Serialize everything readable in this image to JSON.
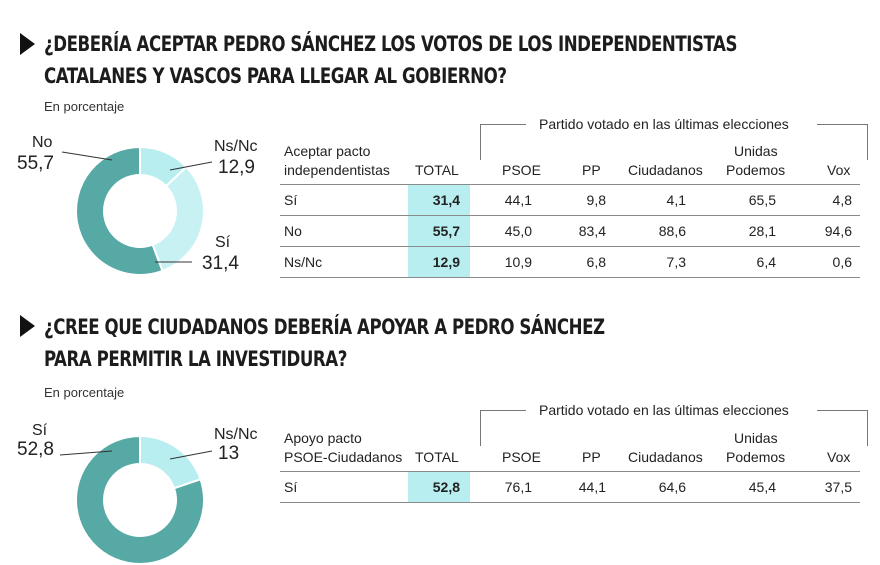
{
  "colors": {
    "no": "#56a9a5",
    "nsnc": "#b8eef0",
    "si": "#c7f1f3",
    "total_bg": "#b8eef0"
  },
  "section1": {
    "title_line1": "¿DEBERÍA ACEPTAR PEDRO SÁNCHEZ LOS VOTOS DE LOS INDEPENDENTISTAS",
    "title_line2": "CATALANES Y VASCOS PARA LLEGAR AL GOBIERNO?",
    "subtitle": "En porcentaje",
    "pie_labels": {
      "no_label": "No",
      "no_value": "55,7",
      "nsnc_label": "Ns/Nc",
      "nsnc_value": "12,9",
      "si_label": "Sí",
      "si_value": "31,4"
    },
    "table": {
      "group_header": "Partido votado en las últimas elecciones",
      "row_header_1": "Aceptar pacto",
      "row_header_2": "independentistas",
      "total_header": "TOTAL",
      "party_headers": [
        "PSOE",
        "PP",
        "Ciudadanos",
        "Unidas",
        "Podemos",
        "Vox"
      ],
      "rows": [
        {
          "label": "Sí",
          "total": "31,4",
          "psoe": "44,1",
          "pp": "9,8",
          "cs": "4,1",
          "up": "65,5",
          "vox": "4,8"
        },
        {
          "label": "No",
          "total": "55,7",
          "psoe": "45,0",
          "pp": "83,4",
          "cs": "88,6",
          "up": "28,1",
          "vox": "94,6"
        },
        {
          "label": "Ns/Nc",
          "total": "12,9",
          "psoe": "10,9",
          "pp": "6,8",
          "cs": "7,3",
          "up": "6,4",
          "vox": "0,6"
        }
      ]
    }
  },
  "section2": {
    "title_line1": "¿CREE QUE CIUDADANOS DEBERÍA APOYAR A PEDRO SÁNCHEZ",
    "title_line2": "PARA PERMITIR LA INVESTIDURA?",
    "subtitle": "En porcentaje",
    "pie_labels": {
      "si_label": "Sí",
      "si_value": "52,8",
      "nsnc_label": "Ns/Nc",
      "nsnc_value": "13"
    },
    "table": {
      "group_header": "Partido votado en las últimas elecciones",
      "row_header_1": "Apoyo pacto",
      "row_header_2": "PSOE-Ciudadanos",
      "total_header": "TOTAL",
      "party_headers": [
        "PSOE",
        "PP",
        "Ciudadanos",
        "Unidas",
        "Podemos",
        "Vox"
      ],
      "rows": [
        {
          "label": "Sí",
          "total": "52,8",
          "psoe": "76,1",
          "pp": "44,1",
          "cs": "64,6",
          "up": "45,4",
          "vox": "37,5"
        }
      ]
    }
  },
  "chart_data": [
    {
      "type": "pie",
      "title": "¿DEBERÍA ACEPTAR PEDRO SÁNCHEZ LOS VOTOS DE LOS INDEPENDENTISTAS CATALANES Y VASCOS PARA LLEGAR AL GOBIERNO?",
      "categories": [
        "No",
        "Ns/Nc",
        "Sí"
      ],
      "values": [
        55.7,
        12.9,
        31.4
      ]
    },
    {
      "type": "table",
      "columns": [
        "Aceptar pacto independentistas",
        "TOTAL",
        "PSOE",
        "PP",
        "Ciudadanos",
        "Unidas Podemos",
        "Vox"
      ],
      "rows": [
        [
          "Sí",
          31.4,
          44.1,
          9.8,
          4.1,
          65.5,
          4.8
        ],
        [
          "No",
          55.7,
          45.0,
          83.4,
          88.6,
          28.1,
          94.6
        ],
        [
          "Ns/Nc",
          12.9,
          10.9,
          6.8,
          7.3,
          6.4,
          0.6
        ]
      ]
    },
    {
      "type": "pie",
      "title": "¿CREE QUE CIUDADANOS DEBERÍA APOYAR A PEDRO SÁNCHEZ PARA PERMITIR LA INVESTIDURA?",
      "categories": [
        "Sí",
        "Ns/Nc"
      ],
      "values": [
        52.8,
        13
      ]
    },
    {
      "type": "table",
      "columns": [
        "Apoyo pacto PSOE-Ciudadanos",
        "TOTAL",
        "PSOE",
        "PP",
        "Ciudadanos",
        "Unidas Podemos",
        "Vox"
      ],
      "rows": [
        [
          "Sí",
          52.8,
          76.1,
          44.1,
          64.6,
          45.4,
          37.5
        ]
      ]
    }
  ]
}
